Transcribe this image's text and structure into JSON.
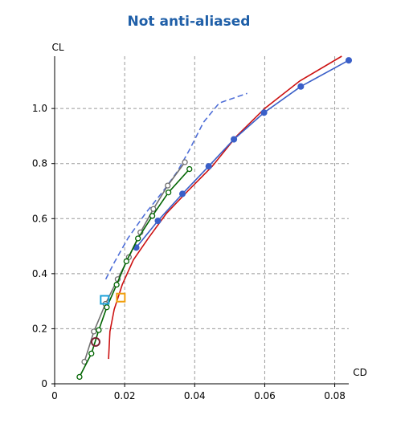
{
  "chart_data": {
    "type": "line",
    "title": "Not anti-aliased",
    "xlabel": "CD",
    "ylabel": "CL",
    "xlim": [
      0,
      0.084
    ],
    "ylim": [
      0,
      1.19
    ],
    "xticks": [
      0,
      0.02,
      0.04,
      0.06,
      0.08
    ],
    "xtick_labels": [
      "0",
      "0.02",
      "0.04",
      "0.06",
      "0.08"
    ],
    "yticks": [
      0,
      0.2,
      0.4,
      0.6,
      0.8,
      1.0
    ],
    "ytick_labels": [
      "0",
      "0.2",
      "0.4",
      "0.6",
      "0.8",
      "1.0"
    ],
    "grid": true,
    "series": [
      {
        "color": "#4f6fd8",
        "style": "dashed",
        "marker": "none",
        "x": [
          0.0146,
          0.017,
          0.021,
          0.026,
          0.031,
          0.035,
          0.0385,
          0.0425,
          0.047,
          0.055
        ],
        "y": [
          0.38,
          0.44,
          0.53,
          0.62,
          0.7,
          0.77,
          0.85,
          0.95,
          1.02,
          1.055
        ]
      },
      {
        "color": "#cc1111",
        "style": "solid",
        "marker": "none",
        "x": [
          0.0154,
          0.0158,
          0.017,
          0.0193,
          0.0225,
          0.0268,
          0.032,
          0.038,
          0.045,
          0.052,
          0.06,
          0.07,
          0.082
        ],
        "y": [
          0.09,
          0.19,
          0.27,
          0.36,
          0.45,
          0.53,
          0.62,
          0.7,
          0.79,
          0.9,
          1.0,
          1.1,
          1.19
        ]
      },
      {
        "color": "#3a5fc8",
        "style": "solid",
        "marker": "filled-circle",
        "x": [
          0.0233,
          0.0295,
          0.0365,
          0.044,
          0.0512,
          0.0598,
          0.0703,
          0.084
        ],
        "y": [
          0.495,
          0.592,
          0.69,
          0.79,
          0.888,
          0.985,
          1.08,
          1.175
        ]
      },
      {
        "color": "#707070",
        "style": "solid",
        "marker": "open-circle",
        "x": [
          0.0085,
          0.0112,
          0.0145,
          0.018,
          0.0212,
          0.0245,
          0.0282,
          0.0323,
          0.0372
        ],
        "y": [
          0.08,
          0.19,
          0.29,
          0.38,
          0.46,
          0.55,
          0.635,
          0.72,
          0.805
        ]
      },
      {
        "color": "#006400",
        "style": "solid",
        "marker": "open-circle",
        "x": [
          0.0071,
          0.0105,
          0.0126,
          0.0149,
          0.0177,
          0.0205,
          0.0238,
          0.0279,
          0.0325,
          0.0385
        ],
        "y": [
          0.025,
          0.11,
          0.195,
          0.278,
          0.36,
          0.445,
          0.528,
          0.61,
          0.695,
          0.78
        ]
      }
    ],
    "highlight_points": [
      {
        "marker": "open-square",
        "color": "#1aa0d8",
        "x": 0.0143,
        "y": 0.305
      },
      {
        "marker": "open-square",
        "color": "#f0a010",
        "x": 0.0189,
        "y": 0.313
      },
      {
        "marker": "open-circle-large",
        "color": "#7a2030",
        "x": 0.0117,
        "y": 0.152
      }
    ]
  }
}
